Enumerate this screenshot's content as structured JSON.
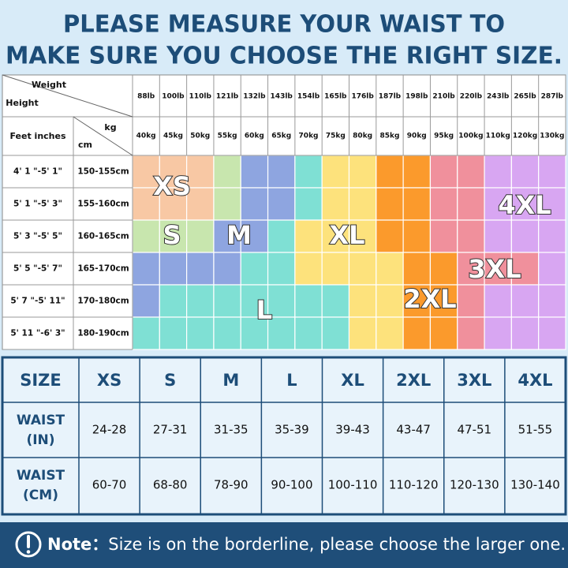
{
  "title": [
    "PLEASE MEASURE YOUR WAIST TO",
    "MAKE SURE YOU CHOOSE THE RIGHT SIZE."
  ],
  "grid": {
    "weight_label": "Weight",
    "height_label": "Height",
    "feet_label": "Feet inches",
    "kg_label": "kg",
    "cm_label": "cm",
    "lb": [
      "88lb",
      "100lb",
      "110lb",
      "121lb",
      "132lb",
      "143lb",
      "154lb",
      "165lb",
      "176lb",
      "187lb",
      "198lb",
      "210lb",
      "220lb",
      "243lb",
      "265lb",
      "287lb"
    ],
    "kg": [
      "40kg",
      "45kg",
      "50kg",
      "55kg",
      "60kg",
      "65kg",
      "70kg",
      "75kg",
      "80kg",
      "85kg",
      "90kg",
      "95kg",
      "100kg",
      "110kg",
      "120kg",
      "130kg"
    ],
    "rows": [
      {
        "feet": "4' 1 \"-5' 1\"",
        "cm": "150-155cm"
      },
      {
        "feet": "5' 1 \"-5' 3\"",
        "cm": "155-160cm"
      },
      {
        "feet": "5' 3 \"-5' 5\"",
        "cm": "160-165cm"
      },
      {
        "feet": "5' 5 \"-5' 7\"",
        "cm": "165-170cm"
      },
      {
        "feet": "5' 7 \"-5' 11\"",
        "cm": "170-180cm"
      },
      {
        "feet": "5' 11 \"-6' 3\"",
        "cm": "180-190cm"
      }
    ],
    "size_labels": [
      "XS",
      "S",
      "M",
      "L",
      "XL",
      "2XL",
      "3XL",
      "4XL"
    ]
  },
  "table": {
    "header": [
      "SIZE",
      "XS",
      "S",
      "M",
      "L",
      "XL",
      "2XL",
      "3XL",
      "4XL"
    ],
    "rows": [
      {
        "label": [
          "WAIST",
          "(IN)"
        ],
        "values": [
          "24-28",
          "27-31",
          "31-35",
          "35-39",
          "39-43",
          "43-47",
          "47-51",
          "51-55"
        ]
      },
      {
        "label": [
          "WAIST",
          "(CM)"
        ],
        "values": [
          "60-70",
          "68-80",
          "78-90",
          "90-100",
          "100-110",
          "110-120",
          "120-130",
          "130-140"
        ]
      }
    ]
  },
  "note": {
    "label": "Note：",
    "text": "Size is on the borderline, please choose the larger one."
  }
}
